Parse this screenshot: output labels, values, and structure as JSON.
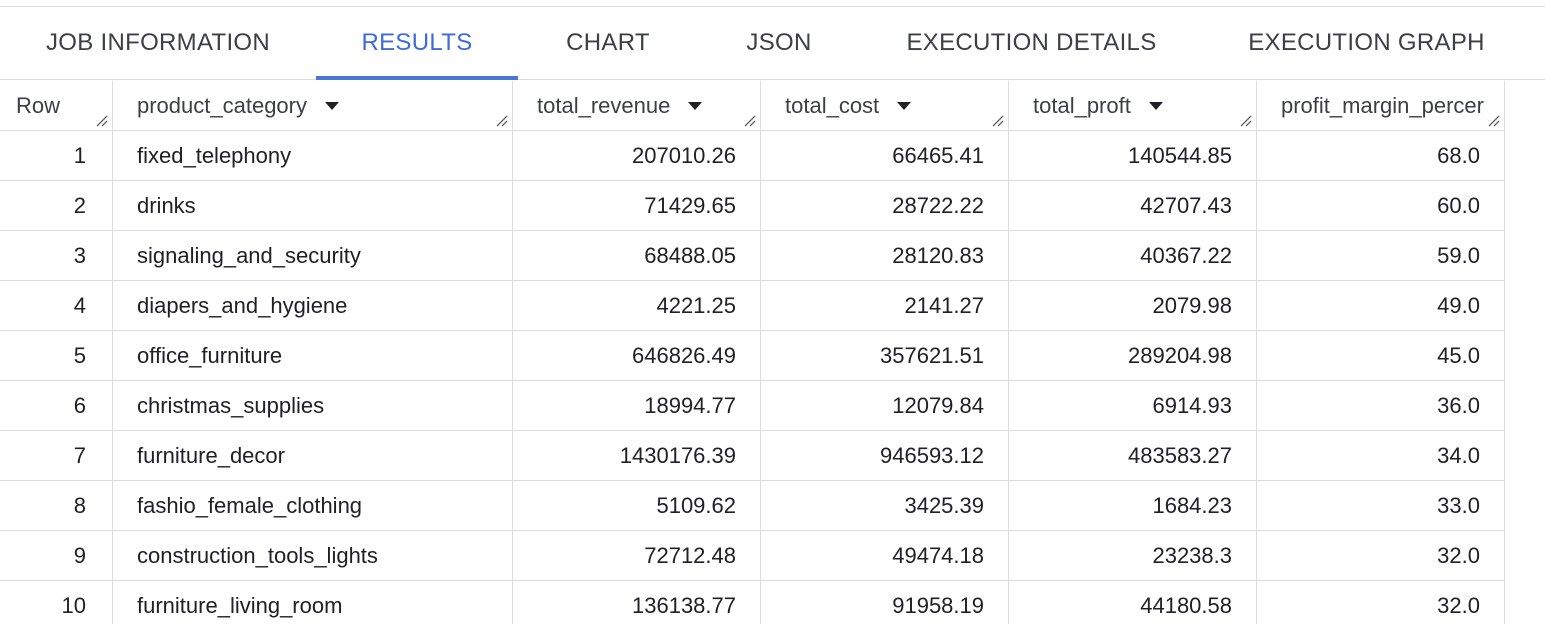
{
  "tabs": [
    {
      "label": "JOB INFORMATION",
      "active": false
    },
    {
      "label": "RESULTS",
      "active": true
    },
    {
      "label": "CHART",
      "active": false
    },
    {
      "label": "JSON",
      "active": false
    },
    {
      "label": "EXECUTION DETAILS",
      "active": false
    },
    {
      "label": "EXECUTION GRAPH",
      "active": false
    }
  ],
  "accent_color": "#4a74d9",
  "table": {
    "row_header": "Row",
    "columns": [
      "product_category",
      "total_revenue",
      "total_cost",
      "total_proft",
      "profit_margin_percer"
    ],
    "rows": [
      {
        "n": "1",
        "cells": [
          "fixed_telephony",
          "207010.26",
          "66465.41",
          "140544.85",
          "68.0"
        ]
      },
      {
        "n": "2",
        "cells": [
          "drinks",
          "71429.65",
          "28722.22",
          "42707.43",
          "60.0"
        ]
      },
      {
        "n": "3",
        "cells": [
          "signaling_and_security",
          "68488.05",
          "28120.83",
          "40367.22",
          "59.0"
        ]
      },
      {
        "n": "4",
        "cells": [
          "diapers_and_hygiene",
          "4221.25",
          "2141.27",
          "2079.98",
          "49.0"
        ]
      },
      {
        "n": "5",
        "cells": [
          "office_furniture",
          "646826.49",
          "357621.51",
          "289204.98",
          "45.0"
        ]
      },
      {
        "n": "6",
        "cells": [
          "christmas_supplies",
          "18994.77",
          "12079.84",
          "6914.93",
          "36.0"
        ]
      },
      {
        "n": "7",
        "cells": [
          "furniture_decor",
          "1430176.39",
          "946593.12",
          "483583.27",
          "34.0"
        ]
      },
      {
        "n": "8",
        "cells": [
          "fashio_female_clothing",
          "5109.62",
          "3425.39",
          "1684.23",
          "33.0"
        ]
      },
      {
        "n": "9",
        "cells": [
          "construction_tools_lights",
          "72712.48",
          "49474.18",
          "23238.3",
          "32.0"
        ]
      },
      {
        "n": "10",
        "cells": [
          "furniture_living_room",
          "136138.77",
          "91958.19",
          "44180.58",
          "32.0"
        ]
      }
    ]
  }
}
